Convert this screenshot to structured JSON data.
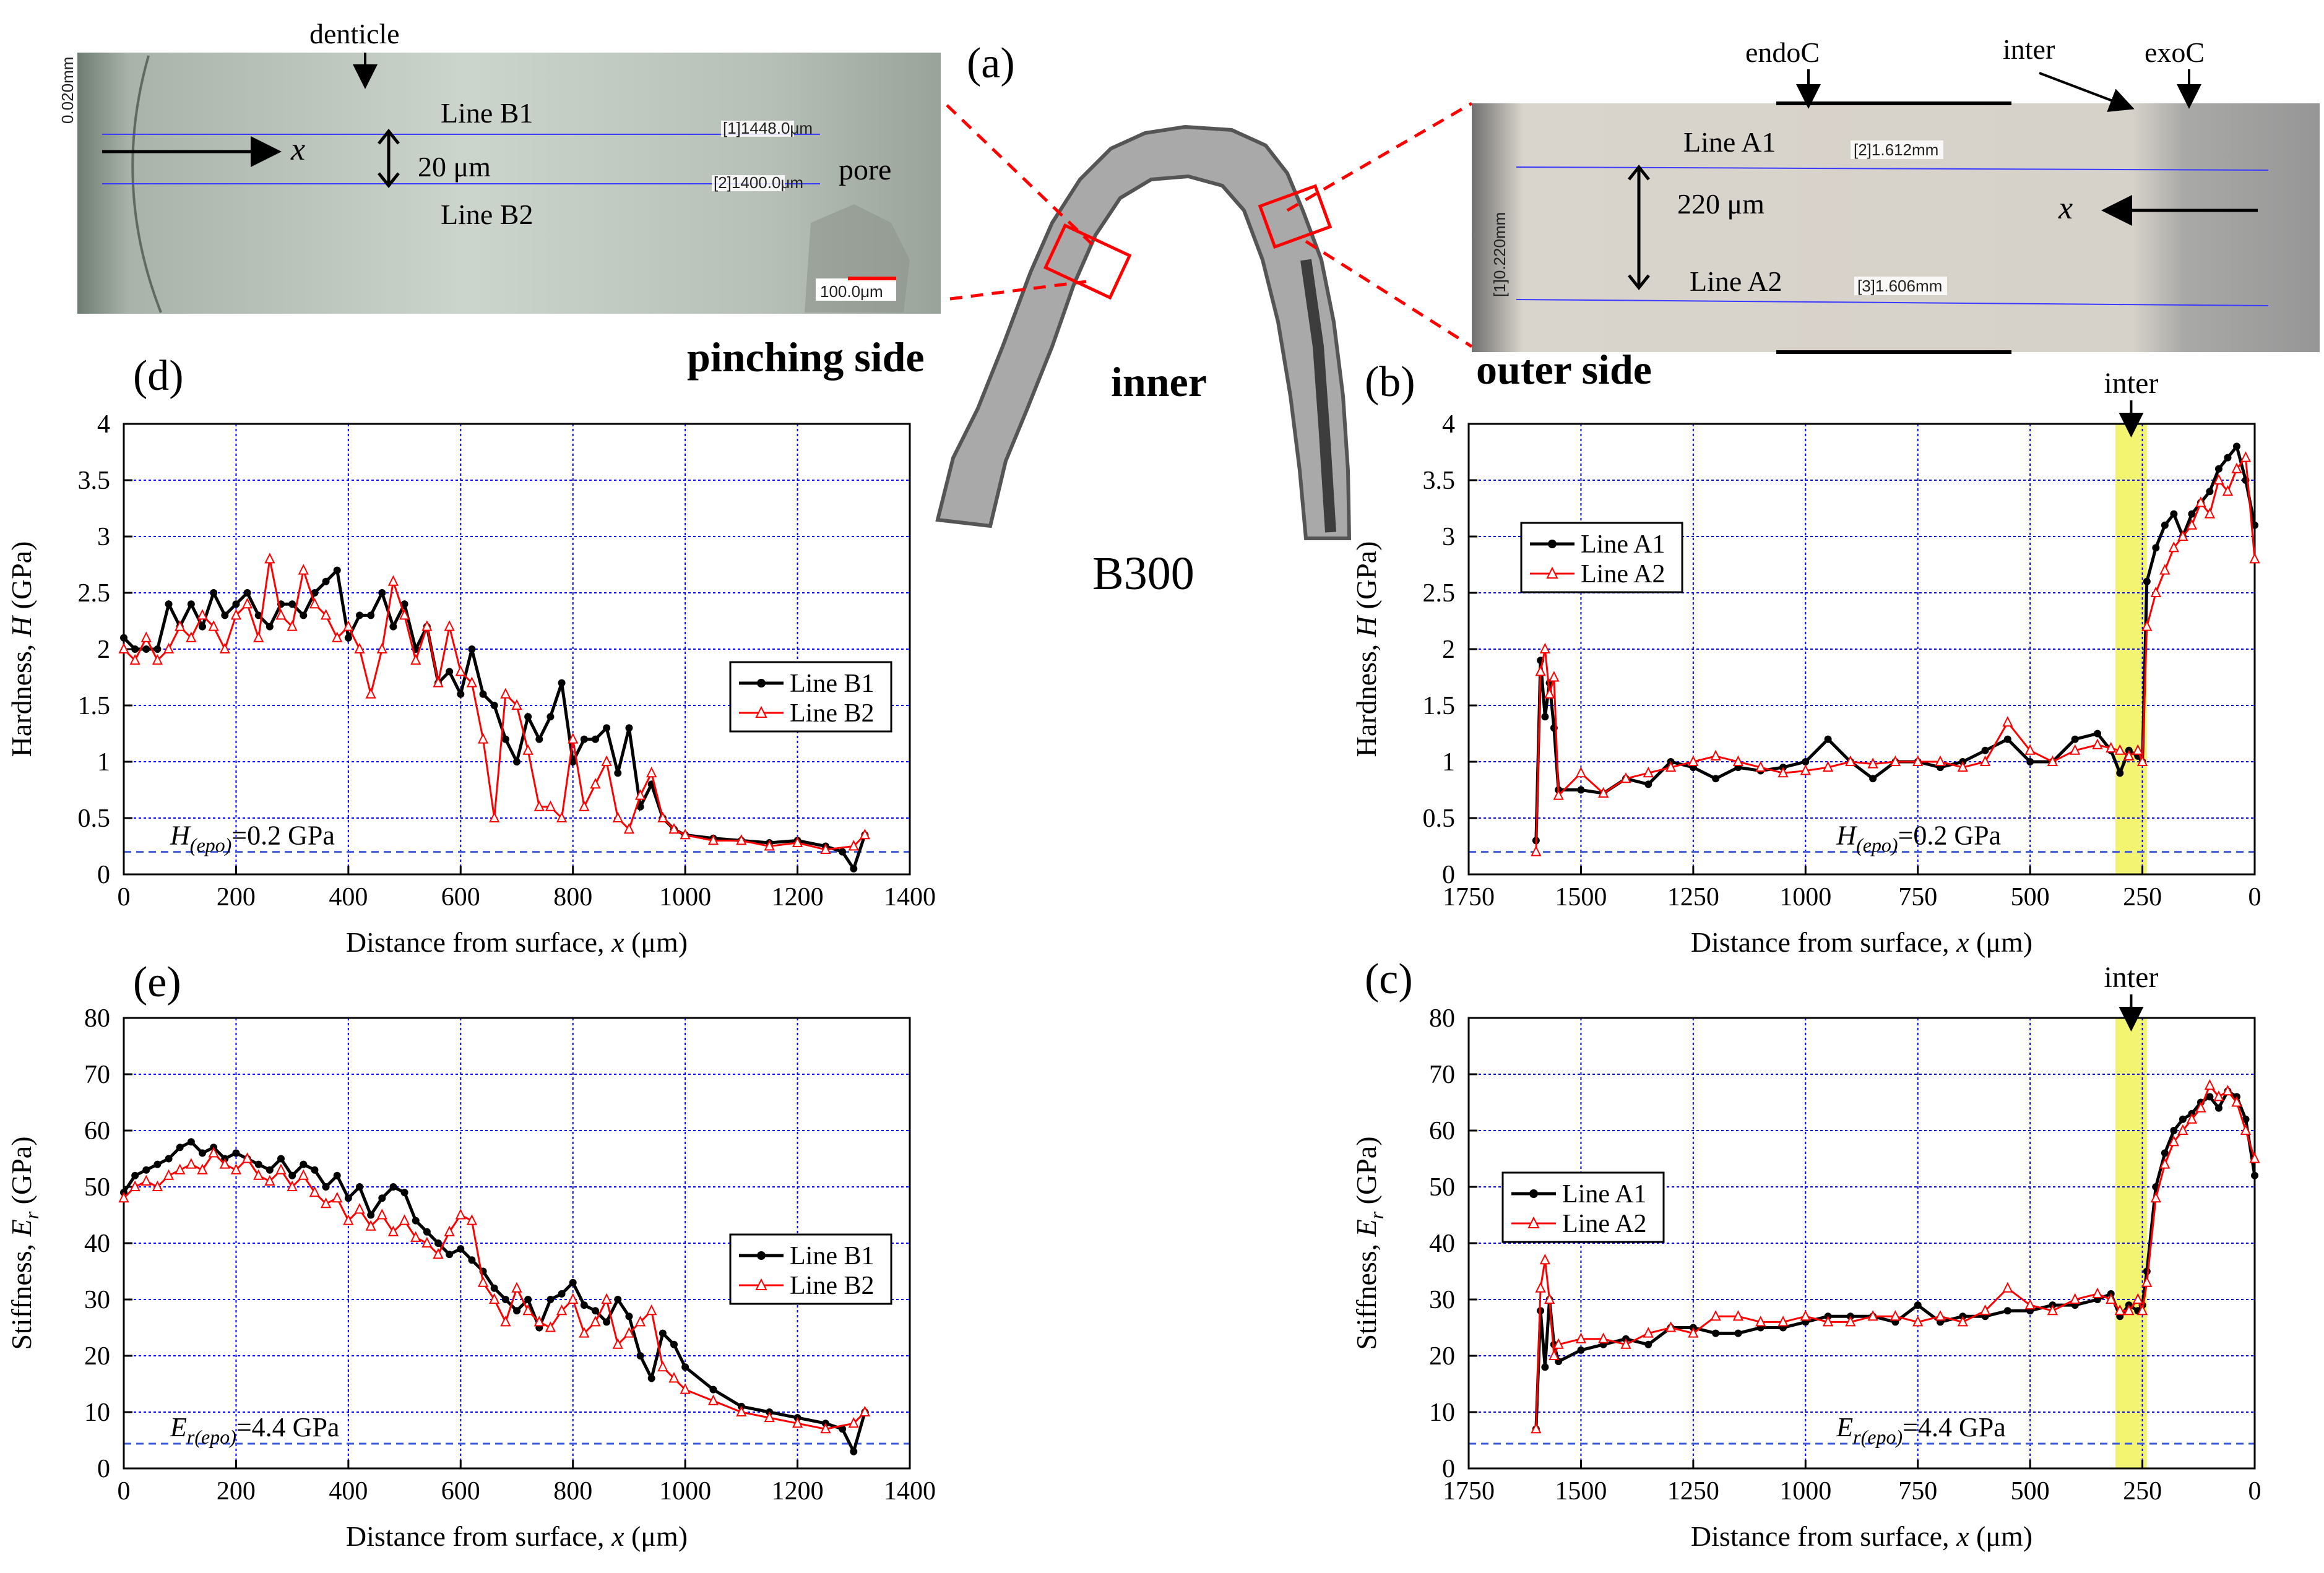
{
  "figure": {
    "label_a": "(a)",
    "specimen_name": "B300",
    "inner_label": "inner",
    "pinching_label": "pinching side",
    "outer_label": "outer side",
    "inset_left": {
      "denticle": "denticle",
      "line1": "Line B1",
      "line2": "Line B2",
      "spacing": "20 μm",
      "x_arrow": "x",
      "pore": "pore",
      "meas1": "[1]1448.0μm",
      "meas2": "[2]1400.0μm",
      "meas3": "0.020mm",
      "scale": "100.0μm"
    },
    "inset_right": {
      "endo": "endoC",
      "inter": "inter",
      "exo": "exoC",
      "line1": "Line A1",
      "line2": "Line A2",
      "spacing": "220 μm",
      "x_arrow": "x",
      "meas1": "[2]1.612mm",
      "meas2": "[3]1.606mm",
      "meas3": "[1]0.220mm"
    }
  },
  "colors": {
    "series1": "#000000",
    "series2": "#ff0000",
    "grid": "#0000ff",
    "highlight": "#f2f25a"
  },
  "chart_data": [
    {
      "id": "d",
      "panel_label": "(d)",
      "type": "line",
      "xlabel": "Distance from surface, x (μm)",
      "ylabel": "Hardness, H (GPa)",
      "xlim": [
        0,
        1400
      ],
      "ylim": [
        0,
        4
      ],
      "xticks": [
        0,
        200,
        400,
        600,
        800,
        1000,
        1200,
        1400
      ],
      "yticks": [
        0,
        0.5,
        1,
        1.5,
        2,
        2.5,
        3,
        3.5,
        4
      ],
      "legend": "center-right",
      "reference": {
        "value": 0.2,
        "label": "H(epo)=0.2 GPa"
      },
      "series": [
        {
          "name": "Line B1",
          "marker": "circle",
          "x": [
            0,
            20,
            40,
            60,
            80,
            100,
            120,
            140,
            160,
            180,
            200,
            220,
            240,
            260,
            280,
            300,
            320,
            340,
            360,
            380,
            400,
            420,
            440,
            460,
            480,
            500,
            520,
            540,
            560,
            580,
            600,
            620,
            640,
            660,
            680,
            700,
            720,
            740,
            760,
            780,
            800,
            820,
            840,
            860,
            880,
            900,
            920,
            940,
            960,
            980,
            1000,
            1050,
            1100,
            1150,
            1200,
            1250,
            1280,
            1300,
            1320
          ],
          "values": [
            2.1,
            2.0,
            2.0,
            2.0,
            2.4,
            2.2,
            2.4,
            2.2,
            2.5,
            2.3,
            2.4,
            2.5,
            2.3,
            2.2,
            2.4,
            2.4,
            2.3,
            2.5,
            2.6,
            2.7,
            2.1,
            2.3,
            2.3,
            2.5,
            2.2,
            2.4,
            2.0,
            2.2,
            1.7,
            1.8,
            1.6,
            2.0,
            1.6,
            1.5,
            1.2,
            1.0,
            1.4,
            1.2,
            1.4,
            1.7,
            1.0,
            1.2,
            1.2,
            1.3,
            0.9,
            1.3,
            0.6,
            0.8,
            0.5,
            0.4,
            0.35,
            0.32,
            0.3,
            0.28,
            0.3,
            0.25,
            0.2,
            0.05,
            0.35
          ]
        },
        {
          "name": "Line B2",
          "marker": "triangle",
          "x": [
            0,
            20,
            40,
            60,
            80,
            100,
            120,
            140,
            160,
            180,
            200,
            220,
            240,
            260,
            280,
            300,
            320,
            340,
            360,
            380,
            400,
            420,
            440,
            460,
            480,
            500,
            520,
            540,
            560,
            580,
            600,
            620,
            640,
            660,
            680,
            700,
            720,
            740,
            760,
            780,
            800,
            820,
            840,
            860,
            880,
            900,
            920,
            940,
            960,
            980,
            1000,
            1050,
            1100,
            1150,
            1200,
            1250,
            1300,
            1320
          ],
          "values": [
            2.0,
            1.9,
            2.1,
            1.9,
            2.0,
            2.2,
            2.1,
            2.3,
            2.2,
            2.0,
            2.3,
            2.4,
            2.1,
            2.8,
            2.3,
            2.2,
            2.7,
            2.4,
            2.3,
            2.1,
            2.2,
            2.0,
            1.6,
            2.0,
            2.6,
            2.3,
            1.9,
            2.2,
            1.7,
            2.2,
            1.8,
            1.7,
            1.2,
            0.5,
            1.6,
            1.5,
            1.1,
            0.6,
            0.6,
            0.5,
            1.2,
            0.6,
            0.8,
            1.0,
            0.5,
            0.4,
            0.7,
            0.9,
            0.5,
            0.4,
            0.35,
            0.3,
            0.3,
            0.25,
            0.28,
            0.22,
            0.25,
            0.35
          ]
        }
      ]
    },
    {
      "id": "b",
      "panel_label": "(b)",
      "type": "line",
      "xlabel": "Distance from surface, x (μm)",
      "ylabel": "Hardness, H (GPa)",
      "xlim": [
        1750,
        0
      ],
      "ylim": [
        0,
        4
      ],
      "xticks": [
        1750,
        1500,
        1250,
        1000,
        750,
        500,
        250,
        0
      ],
      "yticks": [
        0,
        0.5,
        1,
        1.5,
        2,
        2.5,
        3,
        3.5,
        4
      ],
      "legend": "top-left",
      "reference": {
        "value": 0.2,
        "label": "H(epo)=0.2 GPa"
      },
      "highlight": {
        "x": [
          310,
          240
        ],
        "label": "inter"
      },
      "series": [
        {
          "name": "Line A1",
          "marker": "circle",
          "x": [
            1600,
            1590,
            1580,
            1570,
            1560,
            1550,
            1500,
            1450,
            1400,
            1350,
            1300,
            1250,
            1200,
            1150,
            1100,
            1050,
            1000,
            950,
            900,
            850,
            800,
            750,
            700,
            650,
            600,
            550,
            500,
            450,
            400,
            350,
            320,
            300,
            280,
            260,
            250,
            240,
            220,
            200,
            180,
            160,
            140,
            120,
            100,
            80,
            60,
            40,
            20,
            0
          ],
          "values": [
            0.3,
            1.9,
            1.4,
            1.7,
            1.3,
            0.75,
            0.75,
            0.72,
            0.85,
            0.8,
            1.0,
            0.95,
            0.85,
            0.95,
            0.92,
            0.95,
            1.0,
            1.2,
            1.0,
            0.85,
            1.0,
            1.0,
            0.95,
            1.0,
            1.1,
            1.2,
            1.0,
            1.0,
            1.2,
            1.25,
            1.1,
            0.9,
            1.1,
            1.05,
            1.0,
            2.6,
            2.9,
            3.1,
            3.2,
            3.0,
            3.2,
            3.3,
            3.4,
            3.6,
            3.7,
            3.8,
            3.5,
            3.1
          ]
        },
        {
          "name": "Line A2",
          "marker": "triangle",
          "x": [
            1600,
            1590,
            1580,
            1570,
            1560,
            1550,
            1500,
            1450,
            1400,
            1350,
            1300,
            1250,
            1200,
            1150,
            1100,
            1050,
            1000,
            950,
            900,
            850,
            800,
            750,
            700,
            650,
            600,
            550,
            500,
            450,
            400,
            350,
            320,
            300,
            280,
            260,
            250,
            240,
            220,
            200,
            180,
            160,
            140,
            120,
            100,
            80,
            60,
            40,
            20,
            0
          ],
          "values": [
            0.2,
            1.8,
            2.0,
            1.6,
            1.75,
            0.7,
            0.9,
            0.72,
            0.85,
            0.9,
            0.95,
            1.0,
            1.05,
            1.0,
            0.95,
            0.9,
            0.92,
            0.95,
            1.0,
            0.98,
            1.0,
            1.0,
            1.0,
            0.95,
            1.0,
            1.35,
            1.1,
            1.0,
            1.1,
            1.15,
            1.12,
            1.1,
            1.05,
            1.1,
            1.0,
            2.2,
            2.5,
            2.7,
            2.9,
            3.0,
            3.1,
            3.3,
            3.2,
            3.5,
            3.4,
            3.6,
            3.7,
            2.8
          ]
        }
      ]
    },
    {
      "id": "e",
      "panel_label": "(e)",
      "type": "line",
      "xlabel": "Distance from surface, x (μm)",
      "ylabel": "Stiffness, Er (GPa)",
      "xlim": [
        0,
        1400
      ],
      "ylim": [
        0,
        80
      ],
      "xticks": [
        0,
        200,
        400,
        600,
        800,
        1000,
        1200,
        1400
      ],
      "yticks": [
        0,
        10,
        20,
        30,
        40,
        50,
        60,
        70,
        80
      ],
      "legend": "center-right",
      "reference": {
        "value": 4.4,
        "label": "Er(epo)=4.4 GPa"
      },
      "series": [
        {
          "name": "Line B1",
          "marker": "circle",
          "x": [
            0,
            20,
            40,
            60,
            80,
            100,
            120,
            140,
            160,
            180,
            200,
            220,
            240,
            260,
            280,
            300,
            320,
            340,
            360,
            380,
            400,
            420,
            440,
            460,
            480,
            500,
            520,
            540,
            560,
            580,
            600,
            620,
            640,
            660,
            680,
            700,
            720,
            740,
            760,
            780,
            800,
            820,
            840,
            860,
            880,
            900,
            920,
            940,
            960,
            980,
            1000,
            1050,
            1100,
            1150,
            1200,
            1250,
            1280,
            1300,
            1320
          ],
          "values": [
            49,
            52,
            53,
            54,
            55,
            57,
            58,
            56,
            57,
            55,
            56,
            55,
            54,
            53,
            55,
            52,
            54,
            53,
            50,
            52,
            48,
            50,
            45,
            48,
            50,
            49,
            44,
            42,
            40,
            38,
            39,
            37,
            35,
            32,
            30,
            28,
            30,
            25,
            30,
            31,
            33,
            29,
            28,
            26,
            30,
            27,
            20,
            16,
            24,
            22,
            18,
            14,
            11,
            10,
            9,
            8,
            7,
            3,
            10
          ]
        },
        {
          "name": "Line B2",
          "marker": "triangle",
          "x": [
            0,
            20,
            40,
            60,
            80,
            100,
            120,
            140,
            160,
            180,
            200,
            220,
            240,
            260,
            280,
            300,
            320,
            340,
            360,
            380,
            400,
            420,
            440,
            460,
            480,
            500,
            520,
            540,
            560,
            580,
            600,
            620,
            640,
            660,
            680,
            700,
            720,
            740,
            760,
            780,
            800,
            820,
            840,
            860,
            880,
            900,
            920,
            940,
            960,
            980,
            1000,
            1050,
            1100,
            1150,
            1200,
            1250,
            1300,
            1320
          ],
          "values": [
            48,
            50,
            51,
            50,
            52,
            53,
            54,
            53,
            56,
            54,
            53,
            55,
            52,
            51,
            53,
            50,
            52,
            49,
            47,
            48,
            44,
            46,
            43,
            45,
            42,
            44,
            41,
            40,
            38,
            42,
            45,
            44,
            33,
            30,
            26,
            32,
            28,
            26,
            25,
            28,
            30,
            24,
            26,
            30,
            22,
            24,
            26,
            28,
            18,
            16,
            14,
            12,
            10,
            9,
            8,
            7,
            8,
            10
          ]
        }
      ]
    },
    {
      "id": "c",
      "panel_label": "(c)",
      "type": "line",
      "xlabel": "Distance from surface, x (μm)",
      "ylabel": "Stiffness, Er (GPa)",
      "xlim": [
        1750,
        0
      ],
      "ylim": [
        0,
        80
      ],
      "xticks": [
        1750,
        1500,
        1250,
        1000,
        750,
        500,
        250,
        0
      ],
      "yticks": [
        0,
        10,
        20,
        30,
        40,
        50,
        60,
        70,
        80
      ],
      "legend": "center-left",
      "reference": {
        "value": 4.4,
        "label": "Er(epo)=4.4 GPa"
      },
      "highlight": {
        "x": [
          310,
          240
        ],
        "label": "inter"
      },
      "series": [
        {
          "name": "Line A1",
          "marker": "circle",
          "x": [
            1600,
            1590,
            1580,
            1570,
            1560,
            1550,
            1500,
            1450,
            1400,
            1350,
            1300,
            1250,
            1200,
            1150,
            1100,
            1050,
            1000,
            950,
            900,
            850,
            800,
            750,
            700,
            650,
            600,
            550,
            500,
            450,
            400,
            350,
            320,
            300,
            280,
            260,
            250,
            240,
            220,
            200,
            180,
            160,
            140,
            120,
            100,
            80,
            60,
            40,
            20,
            0
          ],
          "values": [
            7,
            28,
            18,
            30,
            22,
            19,
            21,
            22,
            23,
            22,
            25,
            25,
            24,
            24,
            25,
            25,
            26,
            27,
            27,
            27,
            26,
            29,
            26,
            27,
            27,
            28,
            28,
            29,
            29,
            30,
            31,
            27,
            29,
            28,
            29,
            35,
            50,
            56,
            60,
            62,
            63,
            65,
            66,
            64,
            67,
            66,
            62,
            52
          ]
        },
        {
          "name": "Line A2",
          "marker": "triangle",
          "x": [
            1600,
            1590,
            1580,
            1570,
            1560,
            1550,
            1500,
            1450,
            1400,
            1350,
            1300,
            1250,
            1200,
            1150,
            1100,
            1050,
            1000,
            950,
            900,
            850,
            800,
            750,
            700,
            650,
            600,
            550,
            500,
            450,
            400,
            350,
            320,
            300,
            280,
            260,
            250,
            240,
            220,
            200,
            180,
            160,
            140,
            120,
            100,
            80,
            60,
            40,
            20,
            0
          ],
          "values": [
            7,
            32,
            37,
            30,
            20,
            22,
            23,
            23,
            22,
            24,
            25,
            24,
            27,
            27,
            26,
            26,
            27,
            26,
            26,
            27,
            27,
            26,
            27,
            26,
            28,
            32,
            29,
            28,
            30,
            31,
            30,
            28,
            28,
            30,
            28,
            33,
            48,
            54,
            58,
            60,
            62,
            64,
            68,
            66,
            67,
            65,
            60,
            55
          ]
        }
      ]
    }
  ]
}
